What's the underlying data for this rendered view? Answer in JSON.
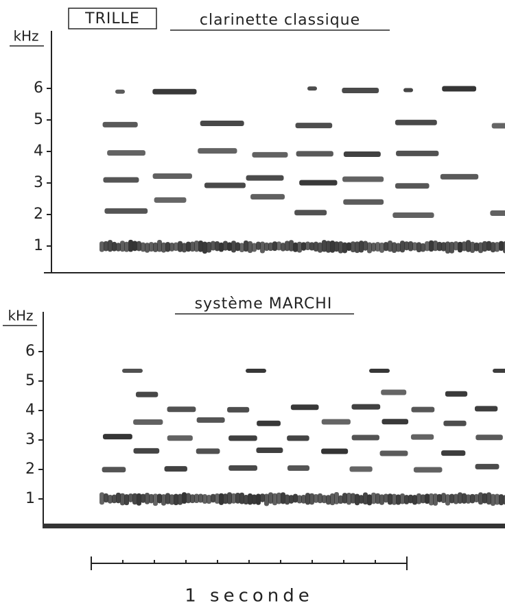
{
  "panels": [
    {
      "title_box": "TRILLE",
      "title": "clarinette classique",
      "axis_label": "kHz",
      "yticks": [
        1,
        2,
        3,
        4,
        5,
        6
      ]
    },
    {
      "title": "système MARCHI",
      "axis_label": "kHz",
      "yticks": [
        1,
        2,
        3,
        4,
        5,
        6
      ]
    }
  ],
  "scale_bar": {
    "label": "1 seconde"
  }
}
